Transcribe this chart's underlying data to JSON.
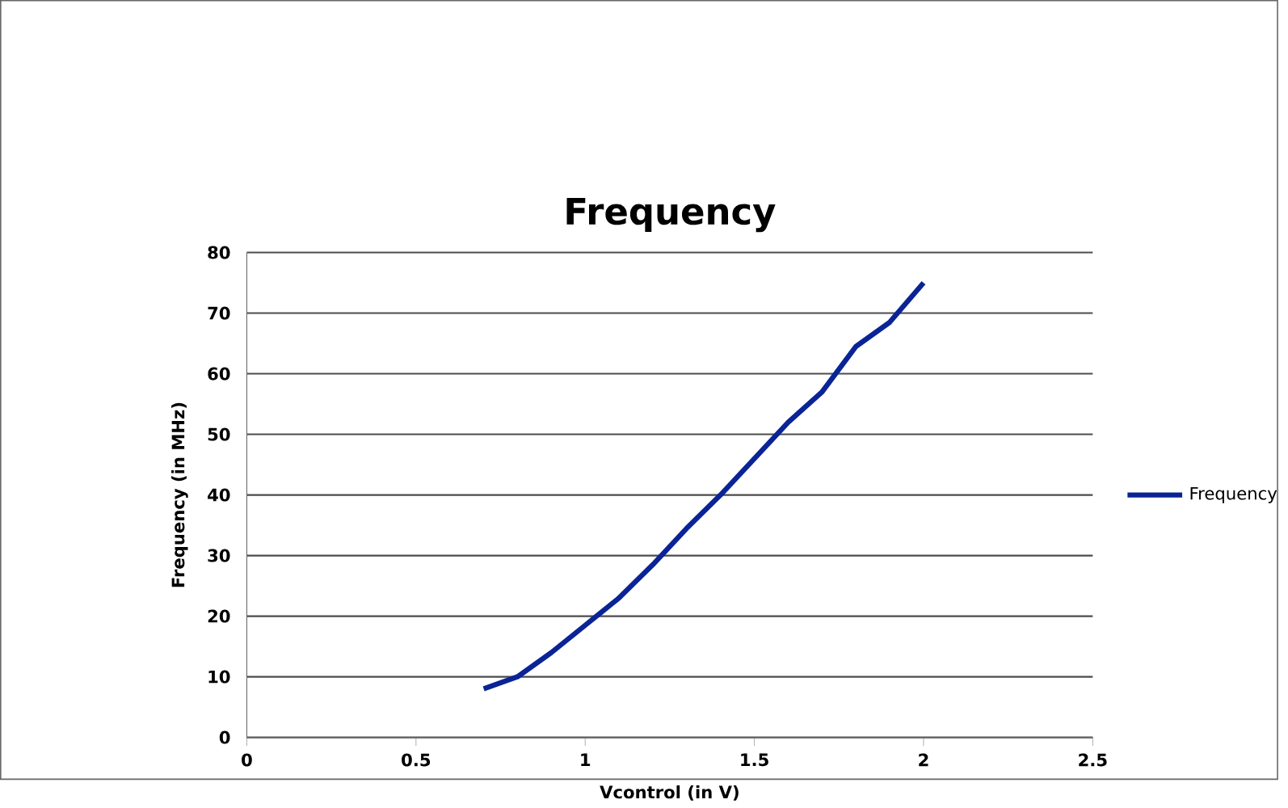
{
  "chart_data": {
    "type": "line",
    "title": "Frequency",
    "xlabel": "Vcontrol (in V)",
    "ylabel": "Frequency (in MHz)",
    "x": [
      0.7,
      0.8,
      0.9,
      1.0,
      1.1,
      1.2,
      1.3,
      1.4,
      1.5,
      1.6,
      1.7,
      1.8,
      1.9,
      2.0
    ],
    "series": [
      {
        "name": "Frequency",
        "color": "#0a2496",
        "values": [
          8,
          10,
          14,
          18.5,
          23,
          28.5,
          34.5,
          40,
          46,
          52,
          57,
          64.5,
          68.5,
          75
        ]
      }
    ],
    "xlim": [
      0,
      2.5
    ],
    "xticks": [
      0,
      0.5,
      1,
      1.5,
      2,
      2.5
    ],
    "ylim": [
      0,
      80
    ],
    "yticks": [
      0,
      10,
      20,
      30,
      40,
      50,
      60,
      70,
      80
    ],
    "grid": "y",
    "legend": "right",
    "marker": "none",
    "line_style": "solid"
  }
}
